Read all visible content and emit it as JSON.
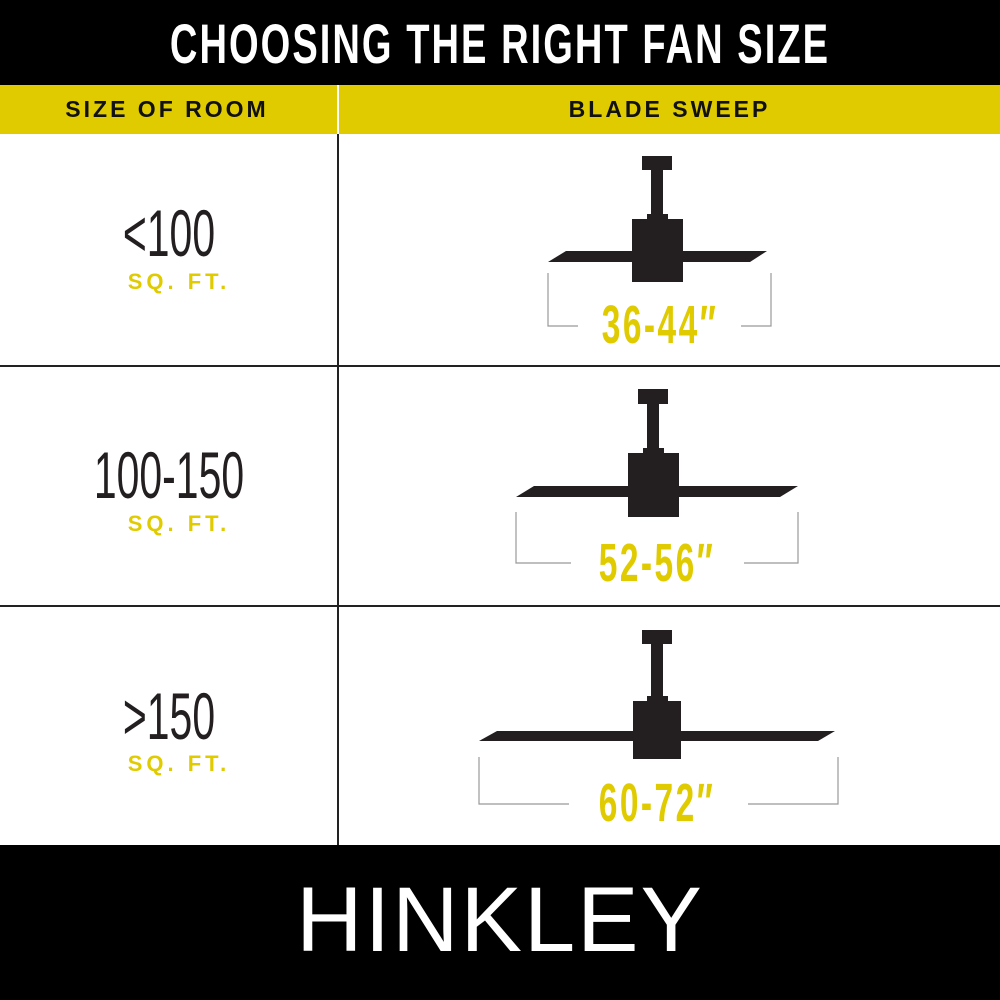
{
  "title": "CHOOSING THE RIGHT FAN SIZE",
  "header": {
    "col1": "SIZE OF ROOM",
    "col2": "BLADE SWEEP"
  },
  "rows": [
    {
      "room_size": "<100",
      "unit": "SQ. FT.",
      "blade_sweep": "36-44″"
    },
    {
      "room_size": "100-150",
      "unit": "SQ. FT.",
      "blade_sweep": "52-56″"
    },
    {
      "room_size": ">150",
      "unit": "SQ. FT.",
      "blade_sweep": "60-72″"
    }
  ],
  "brand": "HINKLEY",
  "colors": {
    "accent": "#e0cb00",
    "background": "#ffffff",
    "bars": "#000000",
    "fan": "#231f20"
  }
}
